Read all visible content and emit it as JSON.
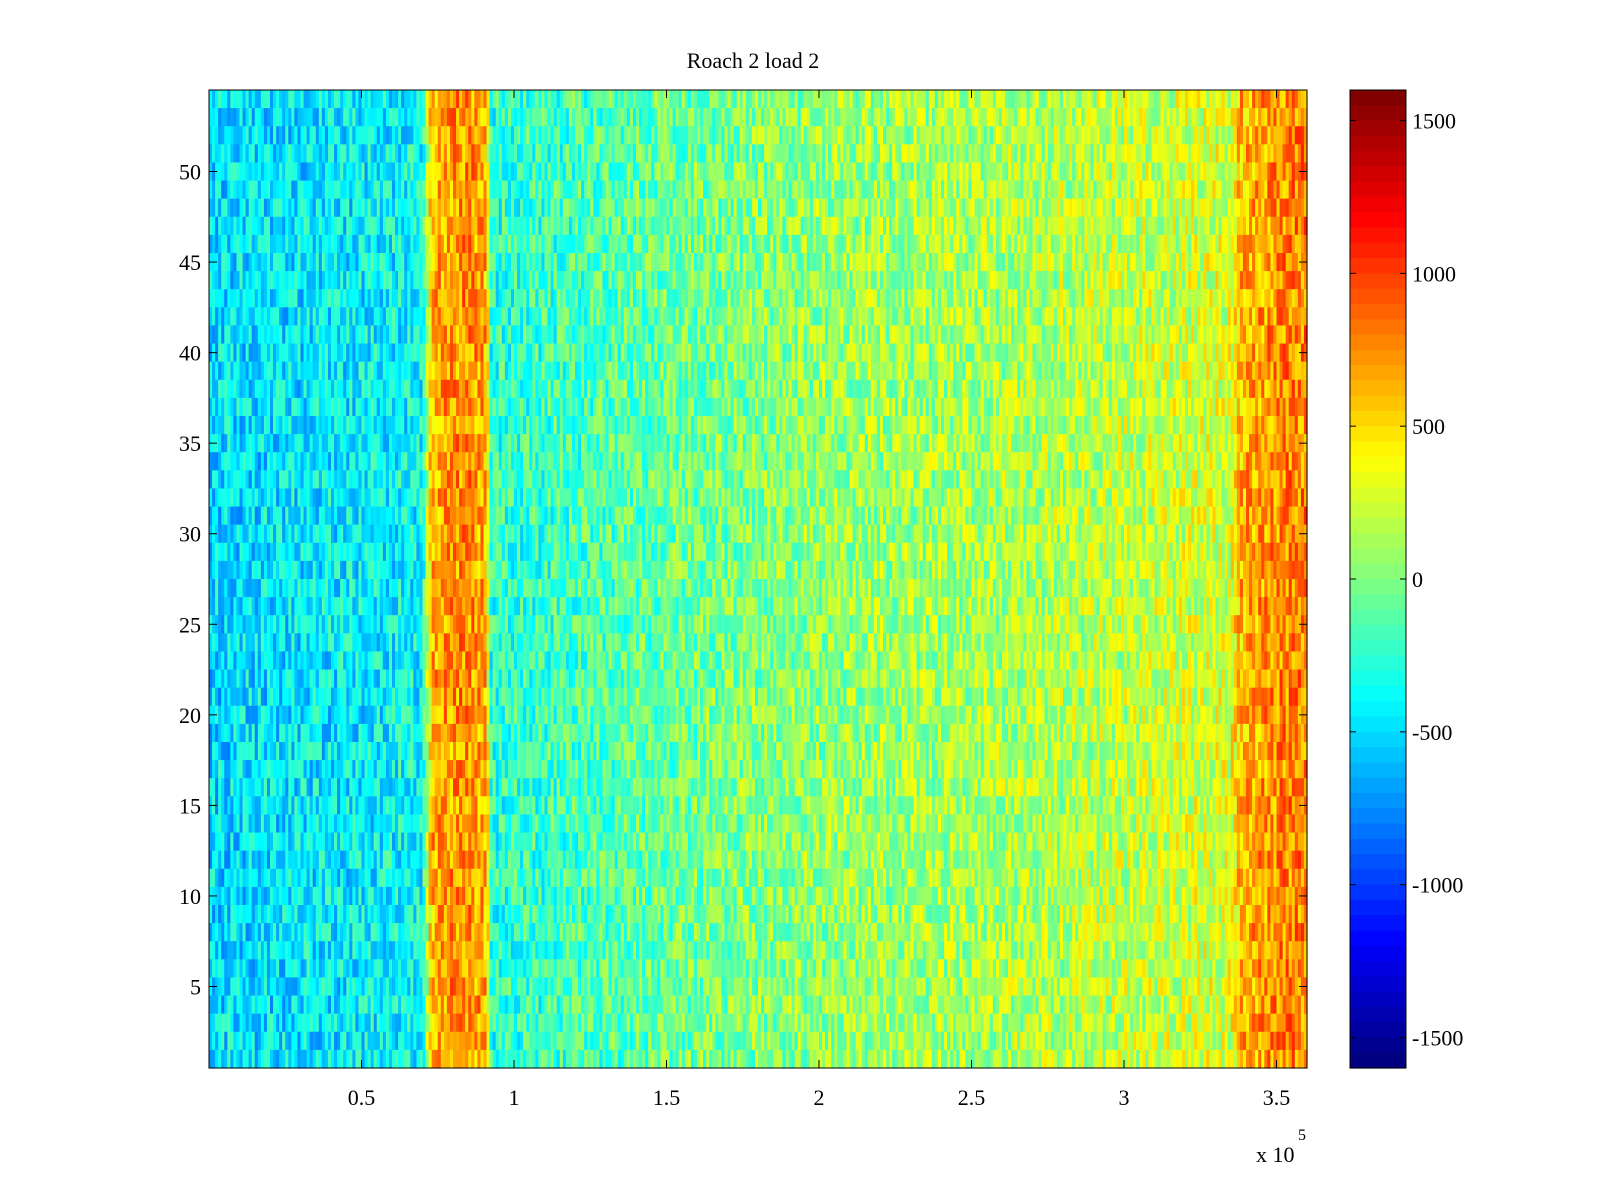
{
  "chart_data": {
    "type": "heatmap",
    "title": "Roach 2 load 2",
    "xlabel": "",
    "ylabel": "",
    "colormap": "jet",
    "xlim": [
      0,
      360000
    ],
    "ylim": [
      0.5,
      54.5
    ],
    "x_ticks": [
      50000,
      100000,
      150000,
      200000,
      250000,
      300000,
      350000
    ],
    "x_tick_labels": [
      "0.5",
      "1",
      "1.5",
      "2",
      "2.5",
      "3",
      "3.5"
    ],
    "x_exponent_label": {
      "base": "x 10",
      "exp": "5"
    },
    "y_ticks": [
      5,
      10,
      15,
      20,
      25,
      30,
      35,
      40,
      45,
      50
    ],
    "y_tick_labels": [
      "5",
      "10",
      "15",
      "20",
      "25",
      "30",
      "35",
      "40",
      "45",
      "50"
    ],
    "rows": 54,
    "noise_amplitude": 320,
    "column_profile": [
      {
        "x": 0,
        "value": -500
      },
      {
        "x": 20000,
        "value": -470
      },
      {
        "x": 50000,
        "value": -430
      },
      {
        "x": 70000,
        "value": -380
      },
      {
        "x": 73000,
        "value": 650
      },
      {
        "x": 84000,
        "value": 780
      },
      {
        "x": 91000,
        "value": 650
      },
      {
        "x": 92500,
        "value": -280
      },
      {
        "x": 120000,
        "value": -180
      },
      {
        "x": 160000,
        "value": -40
      },
      {
        "x": 200000,
        "value": 60
      },
      {
        "x": 260000,
        "value": 130
      },
      {
        "x": 300000,
        "value": 200
      },
      {
        "x": 335000,
        "value": 280
      },
      {
        "x": 338000,
        "value": 620
      },
      {
        "x": 350000,
        "value": 760
      },
      {
        "x": 360000,
        "value": 800
      }
    ],
    "colorbar": {
      "clim": [
        -1600,
        1600
      ],
      "ticks": [
        -1500,
        -1000,
        -500,
        0,
        500,
        1000,
        1500
      ],
      "tick_labels": [
        "-1500",
        "-1000",
        "-500",
        "0",
        "500",
        "1000",
        "1500"
      ]
    }
  }
}
